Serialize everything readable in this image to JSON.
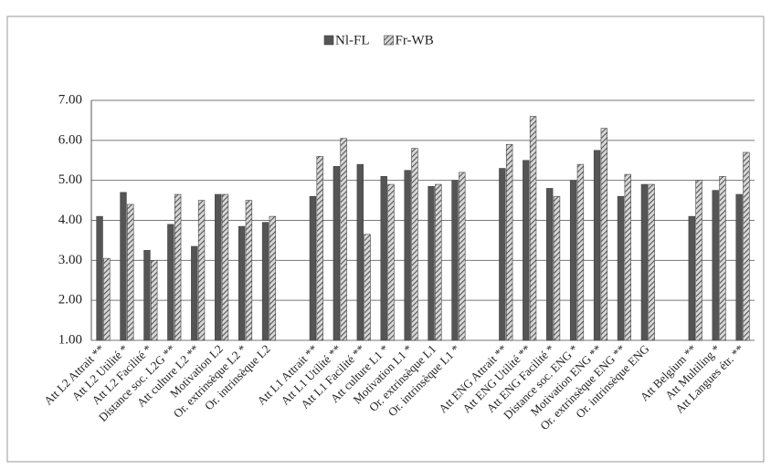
{
  "chart_data": {
    "type": "bar",
    "categories": [
      "Att L2 Attrait **",
      "Att L2 Utilité *",
      "Att L2 Facilité *",
      "Distance soc. L2G **",
      "Att culture L2 **",
      "Motivation L2",
      "Or. extrinsèque L2 *",
      "Or. intrinsèque L2",
      null,
      "Att L1 Attrait **",
      "Att L1 Utilité **",
      "Att L1 Facilité **",
      "Att  culture L1 *",
      "Motivation L1 *",
      "Or. extrinsèque L1",
      "Or. intrinsèque L1 *",
      null,
      "Att ENG Attrait **",
      "Att ENG Utilité **",
      "Att ENG Facilité *",
      "Distance soc. ENG *",
      "Motivation ENG **",
      "Or. extrinsèque ENG **",
      "Or. intrinsèque ENG",
      null,
      "Att Belgium **",
      "Att Multiling *",
      "Att Langues étr. **"
    ],
    "series": [
      {
        "name": "Nl-FL",
        "color": "#555555",
        "values": [
          4.1,
          4.7,
          3.25,
          3.9,
          3.35,
          4.65,
          3.85,
          3.95,
          null,
          4.6,
          5.35,
          5.4,
          5.1,
          5.25,
          4.85,
          5.0,
          null,
          5.3,
          5.5,
          4.8,
          5.0,
          5.75,
          4.6,
          4.9,
          null,
          4.1,
          4.75,
          4.65
        ]
      },
      {
        "name": "Fr-WB",
        "color": "#9a9a9a",
        "values": [
          3.05,
          4.4,
          3.0,
          4.65,
          4.5,
          4.65,
          4.5,
          4.1,
          null,
          5.6,
          6.05,
          3.65,
          4.9,
          5.8,
          4.9,
          5.2,
          null,
          5.9,
          6.6,
          4.6,
          5.4,
          6.3,
          5.15,
          4.9,
          null,
          5.0,
          5.1,
          5.7
        ]
      }
    ],
    "ylim": [
      1,
      7
    ],
    "yticks": [
      {
        "value": 1,
        "label": "1.00"
      },
      {
        "value": 2,
        "label": "2.00"
      },
      {
        "value": 3,
        "label": "3.00"
      },
      {
        "value": 4,
        "label": "4.00"
      },
      {
        "value": 5,
        "label": "5.00"
      },
      {
        "value": 6,
        "label": "6.00"
      },
      {
        "value": 7,
        "label": "7.00"
      }
    ],
    "grid": true,
    "legend": "top"
  }
}
